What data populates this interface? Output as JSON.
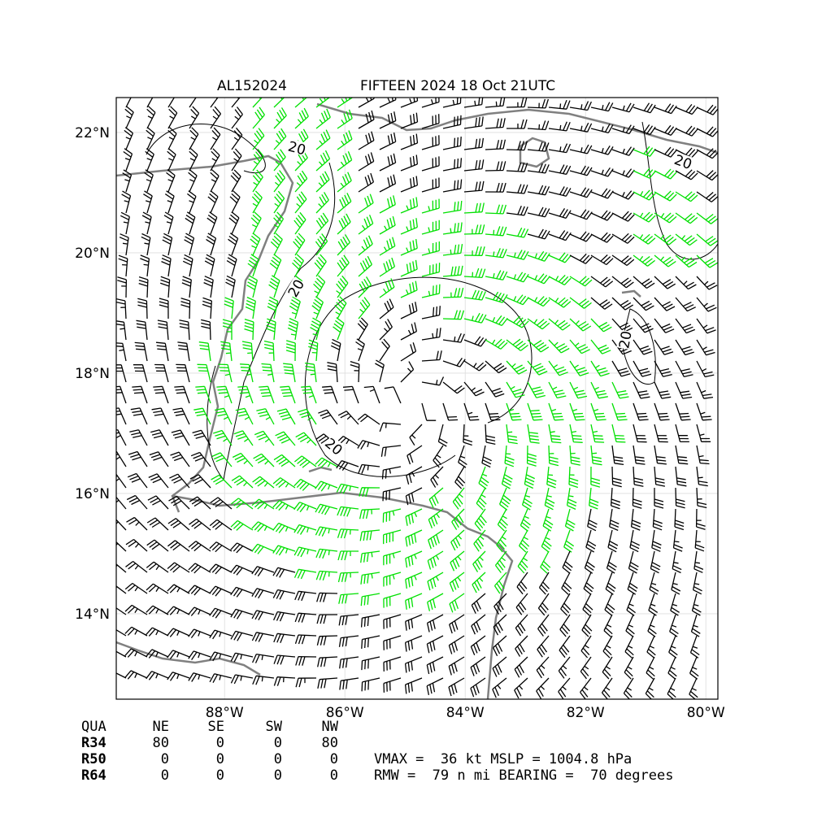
{
  "map": {
    "title_left": "AL152024",
    "title_right": "FIFTEEN 2024 18 Oct 21UTC",
    "xlim": [
      -89.8,
      -79.8
    ],
    "ylim": [
      12.58,
      22.58
    ],
    "xticks": [
      {
        "value": -88,
        "label": "88°W"
      },
      {
        "value": -86,
        "label": "86°W"
      },
      {
        "value": -84,
        "label": "84°W"
      },
      {
        "value": -82,
        "label": "82°W"
      },
      {
        "value": -80,
        "label": "80°W"
      }
    ],
    "yticks": [
      {
        "value": 14,
        "label": "14°N"
      },
      {
        "value": 16,
        "label": "16°N"
      },
      {
        "value": 18,
        "label": "18°N"
      },
      {
        "value": 20,
        "label": "20°N"
      },
      {
        "value": 22,
        "label": "22°N"
      }
    ],
    "contour_level": 20,
    "wind_table": {
      "header": [
        "QUA",
        "NE",
        "SE",
        "SW",
        "NW"
      ],
      "rows": [
        [
          "R34",
          80,
          0,
          0,
          80
        ],
        [
          "R50",
          0,
          0,
          0,
          0
        ],
        [
          "R64",
          0,
          0,
          0,
          0
        ]
      ]
    },
    "summary": [
      "VMAX =  36 kt MSLP = 1004.8 hPa",
      "RMW =  79 n mi BEARING =  70 degrees"
    ]
  }
}
